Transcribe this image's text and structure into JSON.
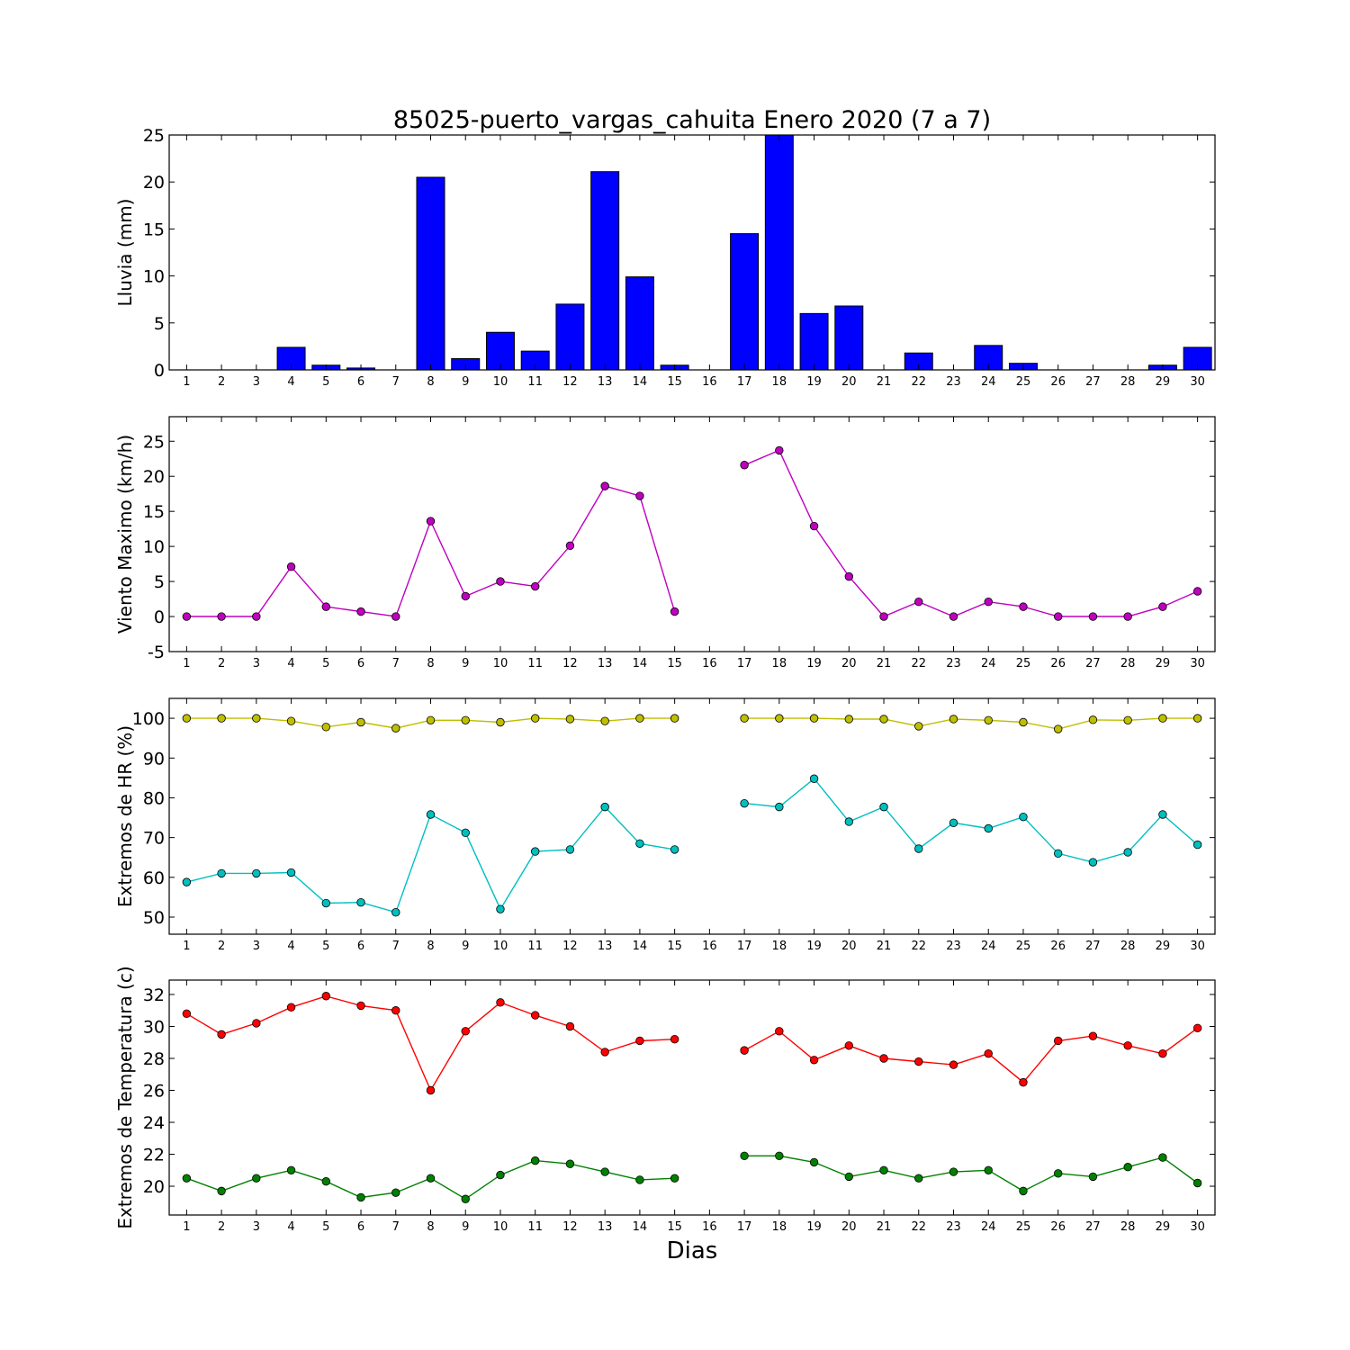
{
  "title": "85025-puerto_vargas_cahuita Enero 2020  (7 a 7)",
  "xlabel": "Dias",
  "colors": {
    "bar": "#0000ff",
    "wind": "#bf00bf",
    "hr_max": "#bfbf00",
    "hr_min": "#00bfbf",
    "t_max": "#ff0000",
    "t_min": "#008000"
  },
  "chart_data": [
    {
      "type": "bar",
      "ylabel": "Lluvia (mm)",
      "categories": [
        "1",
        "2",
        "3",
        "4",
        "5",
        "6",
        "7",
        "8",
        "9",
        "10",
        "11",
        "12",
        "13",
        "14",
        "15",
        "16",
        "17",
        "18",
        "19",
        "20",
        "21",
        "22",
        "23",
        "24",
        "25",
        "26",
        "27",
        "28",
        "29",
        "30"
      ],
      "values": [
        0,
        0,
        0,
        2.4,
        0.5,
        0.2,
        0,
        20.5,
        1.2,
        4,
        2,
        7,
        21.1,
        9.9,
        0.5,
        null,
        14.5,
        25,
        6,
        6.8,
        0,
        1.8,
        0,
        2.6,
        0.7,
        0,
        0,
        0,
        0.5,
        2.4
      ],
      "ylim": [
        0,
        25
      ],
      "yticks": [
        0,
        5,
        10,
        15,
        20,
        25
      ],
      "grid": false
    },
    {
      "type": "line",
      "ylabel": "Viento Maximo (km/h)",
      "categories": [
        "1",
        "2",
        "3",
        "4",
        "5",
        "6",
        "7",
        "8",
        "9",
        "10",
        "11",
        "12",
        "13",
        "14",
        "15",
        "16",
        "17",
        "18",
        "19",
        "20",
        "21",
        "22",
        "23",
        "24",
        "25",
        "26",
        "27",
        "28",
        "29",
        "30"
      ],
      "series": [
        {
          "values": [
            0,
            0,
            0,
            7.1,
            1.4,
            0.7,
            0,
            13.6,
            2.9,
            5,
            4.3,
            10.1,
            18.6,
            17.2,
            0.7,
            null,
            21.6,
            23.7,
            12.9,
            5.7,
            0,
            2.1,
            0,
            2.1,
            1.4,
            0,
            0,
            0,
            1.4,
            3.6
          ]
        }
      ],
      "ylim": [
        -5,
        28.5
      ],
      "yticks": [
        -5,
        0,
        5,
        10,
        15,
        20,
        25
      ],
      "grid": false
    },
    {
      "type": "line",
      "ylabel": "Extremos de HR (%)",
      "categories": [
        "1",
        "2",
        "3",
        "4",
        "5",
        "6",
        "7",
        "8",
        "9",
        "10",
        "11",
        "12",
        "13",
        "14",
        "15",
        "16",
        "17",
        "18",
        "19",
        "20",
        "21",
        "22",
        "23",
        "24",
        "25",
        "26",
        "27",
        "28",
        "29",
        "30"
      ],
      "series": [
        {
          "values": [
            100,
            100,
            100,
            99.3,
            97.8,
            99,
            97.5,
            99.5,
            99.5,
            99,
            100,
            99.8,
            99.3,
            100,
            100,
            null,
            100,
            100,
            100,
            99.8,
            99.8,
            98,
            99.8,
            99.5,
            99,
            97.3,
            99.6,
            99.5,
            100,
            100
          ]
        },
        {
          "values": [
            58.8,
            61,
            61,
            61.2,
            53.5,
            53.7,
            51.2,
            75.8,
            71.2,
            52,
            66.5,
            67,
            77.7,
            68.5,
            67,
            null,
            78.6,
            77.7,
            84.8,
            74,
            77.7,
            67.2,
            73.7,
            72.3,
            75.2,
            66,
            63.8,
            66.3,
            75.8,
            68.2
          ]
        }
      ],
      "ylim": [
        45.7,
        105
      ],
      "yticks": [
        50,
        60,
        70,
        80,
        90,
        100
      ],
      "grid": false
    },
    {
      "type": "line",
      "ylabel": "Extremos de Temperatura (c)",
      "categories": [
        "1",
        "2",
        "3",
        "4",
        "5",
        "6",
        "7",
        "8",
        "9",
        "10",
        "11",
        "12",
        "13",
        "14",
        "15",
        "16",
        "17",
        "18",
        "19",
        "20",
        "21",
        "22",
        "23",
        "24",
        "25",
        "26",
        "27",
        "28",
        "29",
        "30"
      ],
      "series": [
        {
          "values": [
            30.8,
            29.5,
            30.2,
            31.2,
            31.9,
            31.3,
            31,
            26,
            29.7,
            31.5,
            30.7,
            30,
            28.4,
            29.1,
            29.2,
            null,
            28.5,
            29.7,
            27.9,
            28.8,
            28,
            27.8,
            27.6,
            28.3,
            26.5,
            29.1,
            29.4,
            28.8,
            28.3,
            29.9
          ]
        },
        {
          "values": [
            20.5,
            19.7,
            20.5,
            21,
            20.3,
            19.3,
            19.6,
            20.5,
            19.2,
            20.7,
            21.6,
            21.4,
            20.9,
            20.4,
            20.5,
            null,
            21.9,
            21.9,
            21.5,
            20.6,
            21,
            20.5,
            20.9,
            21,
            19.7,
            20.8,
            20.6,
            21.2,
            21.8,
            20.2
          ]
        }
      ],
      "ylim": [
        18.2,
        32.9
      ],
      "yticks": [
        20,
        22,
        24,
        26,
        28,
        30,
        32
      ],
      "grid": false
    }
  ]
}
